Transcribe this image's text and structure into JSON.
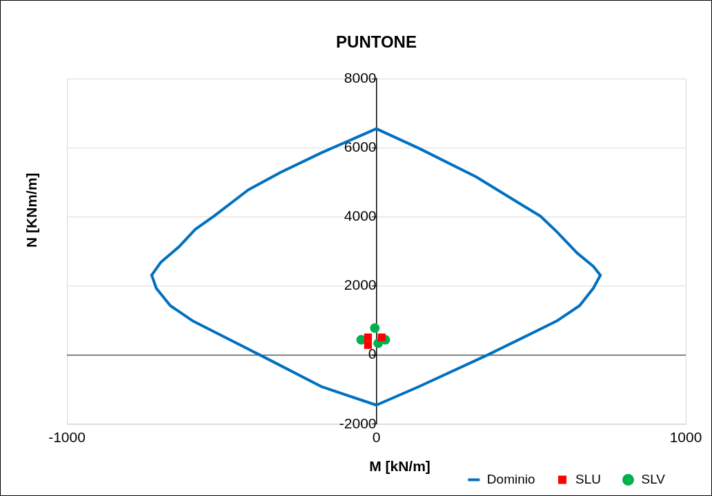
{
  "chart_data": {
    "type": "scatter",
    "title": "PUNTONE",
    "xlabel": "M [kN/m]",
    "ylabel": "N [KNm/m]",
    "xlim": [
      -1000,
      1000
    ],
    "xticks": [
      -1000,
      0,
      1000
    ],
    "ylim": [
      -2000,
      8000
    ],
    "yticks": [
      -2000,
      0,
      2000,
      4000,
      6000,
      8000
    ],
    "grid": "y",
    "legend": "bottom right",
    "series": [
      {
        "name": "Dominio",
        "type": "line",
        "color": "#0070c0",
        "marker": "none",
        "x": [
          0,
          -176,
          -309,
          -414,
          -525,
          -585,
          -637,
          -696,
          -726
        ],
        "values": [
          6550,
          5860,
          5290,
          4780,
          4020,
          3640,
          3140,
          2690,
          2310
        ]
      },
      {
        "type": "line",
        "color": "#0070c0",
        "marker": "none",
        "x": [
          -726,
          -711,
          -666,
          -592,
          -376,
          -176,
          0
        ],
        "values": [
          2310,
          1930,
          1430,
          980,
          0,
          -920,
          -1450
        ]
      },
      {
        "type": "line",
        "color": "#0070c0",
        "marker": "none",
        "x": [
          0,
          136,
          359,
          582,
          657,
          701,
          724
        ],
        "values": [
          -1450,
          -920,
          0,
          980,
          1430,
          1930,
          2310
        ]
      },
      {
        "type": "line",
        "color": "#0070c0",
        "marker": "none",
        "x": [
          724,
          701,
          649,
          582,
          530,
          322,
          136,
          0
        ],
        "values": [
          2310,
          2570,
          2950,
          3580,
          4020,
          5160,
          5990,
          6550
        ]
      },
      {
        "name": "SLU",
        "type": "scatter",
        "color": "#ff0000",
        "marker": "square",
        "x": [
          -27,
          -27,
          17
        ],
        "values": [
          510,
          290,
          510
        ]
      },
      {
        "name": "SLV",
        "type": "scatter",
        "color": "#00b050",
        "marker": "circle",
        "x": [
          -5,
          -49,
          6,
          29
        ],
        "values": [
          780,
          440,
          340,
          440
        ]
      }
    ]
  }
}
